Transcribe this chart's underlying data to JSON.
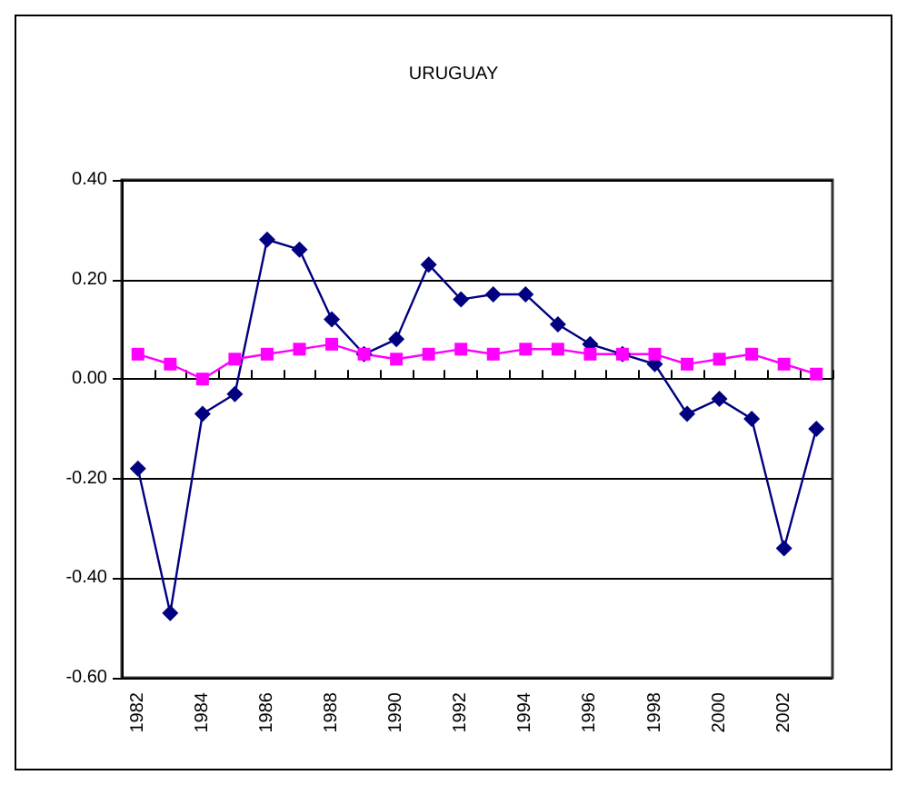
{
  "chart_data": {
    "type": "line",
    "title": "URUGUAY",
    "categories": [
      "1982",
      null,
      "1984",
      null,
      "1986",
      null,
      "1988",
      null,
      "1990",
      null,
      "1992",
      null,
      "1994",
      null,
      "1996",
      null,
      "1998",
      null,
      "2000",
      null,
      "2002",
      null
    ],
    "series": [
      {
        "color": "#000080",
        "marker": "diamond",
        "values": [
          -0.18,
          -0.47,
          -0.07,
          -0.03,
          0.28,
          0.26,
          0.12,
          0.05,
          0.08,
          0.23,
          0.16,
          0.17,
          0.17,
          0.11,
          0.07,
          0.05,
          0.03,
          -0.07,
          -0.04,
          -0.08,
          -0.34,
          -0.1
        ]
      },
      {
        "color": "#ff00ff",
        "marker": "square",
        "values": [
          0.05,
          0.03,
          0.0,
          0.04,
          0.05,
          0.06,
          0.07,
          0.05,
          0.04,
          0.05,
          0.06,
          0.05,
          0.06,
          0.06,
          0.05,
          0.05,
          0.05,
          0.03,
          0.04,
          0.05,
          0.03,
          0.01
        ]
      }
    ],
    "ylim": [
      -0.6,
      0.4
    ],
    "yticks": [
      {
        "value": -0.6,
        "label": "-0.60"
      },
      {
        "value": -0.4,
        "label": "-0.40"
      },
      {
        "value": -0.2,
        "label": "-0.20"
      },
      {
        "value": 0,
        "label": "0.00"
      },
      {
        "value": 0.2,
        "label": "0.20"
      },
      {
        "value": 0.4,
        "label": "0.40"
      }
    ],
    "grid": "y"
  }
}
